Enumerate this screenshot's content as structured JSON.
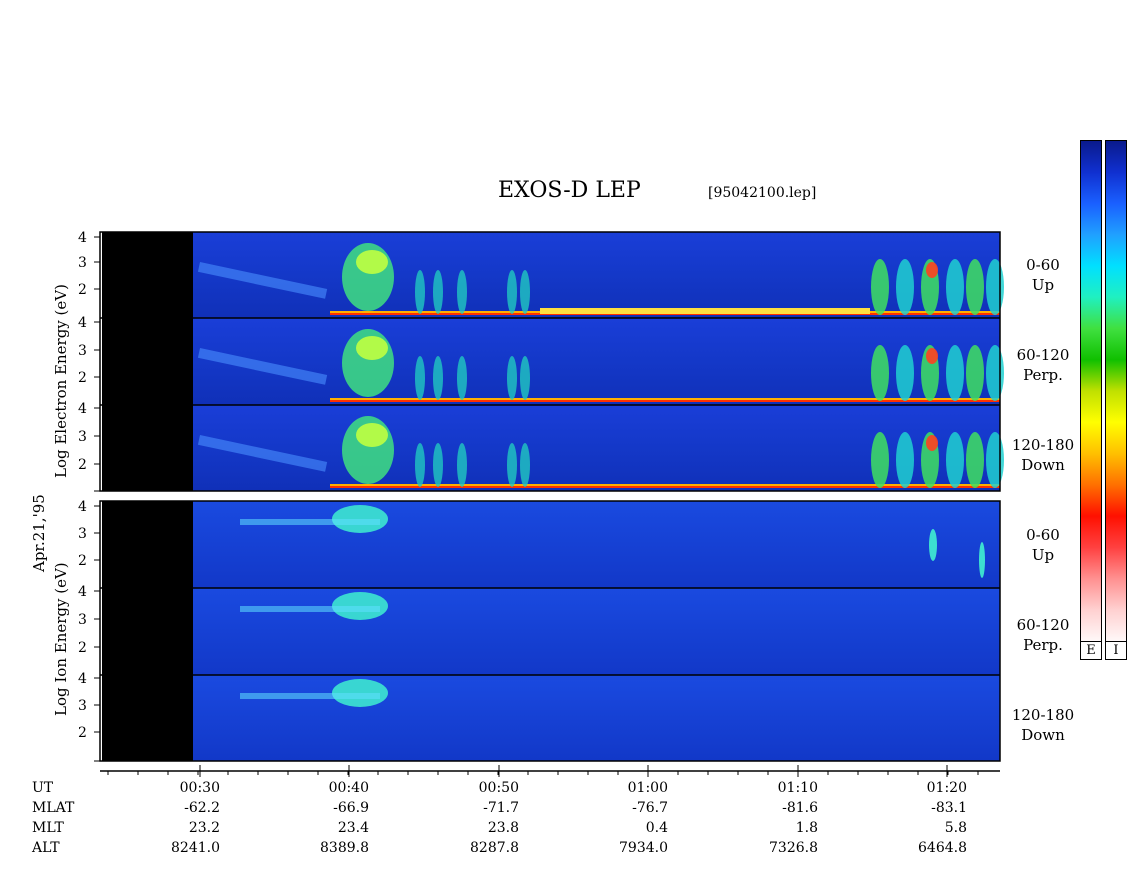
{
  "header": {
    "title": "EXOS-D LEP",
    "file": "[95042100.lep]"
  },
  "side_labels": {
    "date": "Apr.21,'95",
    "electron": "Log  Electron  Energy (eV)",
    "ion": "Log  Ion  Energy (eV)"
  },
  "colorbar": {
    "e_label": "E",
    "i_label": "I",
    "colors": [
      "#0a1a8c",
      "#1030d0",
      "#1a60ff",
      "#20a0ff",
      "#00e0ff",
      "#20f0c0",
      "#40e040",
      "#10c000",
      "#c0e000",
      "#ffff00",
      "#ffc000",
      "#ff7000",
      "#ff1000",
      "#ff4040",
      "#ff9090",
      "#ffd0d0",
      "#fff8f8"
    ]
  },
  "chart_data": {
    "type": "heatmap",
    "title": "EXOS-D LEP",
    "x_axis": {
      "row_labels": [
        "UT",
        "MLAT",
        "MLT",
        "ALT"
      ],
      "ticks": [
        {
          "UT": "00:30",
          "MLAT": "-62.2",
          "MLT": "23.2",
          "ALT": "8241.0"
        },
        {
          "UT": "00:40",
          "MLAT": "-66.9",
          "MLT": "23.4",
          "ALT": "8389.8"
        },
        {
          "UT": "00:50",
          "MLAT": "-71.7",
          "MLT": "23.8",
          "ALT": "8287.8"
        },
        {
          "UT": "01:00",
          "MLAT": "-76.7",
          "MLT": "0.4",
          "ALT": "7934.0"
        },
        {
          "UT": "01:10",
          "MLAT": "-81.6",
          "MLT": "1.8",
          "ALT": "7326.8"
        },
        {
          "UT": "01:20",
          "MLAT": "-83.1",
          "MLT": "5.8",
          "ALT": "6464.8"
        }
      ]
    },
    "y_ticks": [
      "4",
      "3",
      "2"
    ],
    "panels": [
      {
        "species": "Electron",
        "angle": "0-60",
        "direction": "Up"
      },
      {
        "species": "Electron",
        "angle": "60-120",
        "direction": "Perp."
      },
      {
        "species": "Electron",
        "angle": "120-180",
        "direction": "Down"
      },
      {
        "species": "Ion",
        "angle": "0-60",
        "direction": "Up"
      },
      {
        "species": "Ion",
        "angle": "60-120",
        "direction": "Perp."
      },
      {
        "species": "Ion",
        "angle": "120-180",
        "direction": "Down"
      }
    ]
  }
}
